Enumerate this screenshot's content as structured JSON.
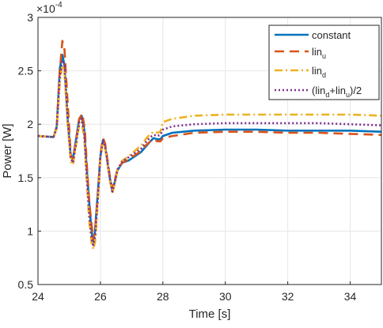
{
  "chart_data": {
    "type": "line",
    "xlabel": "Time [s]",
    "ylabel": "Power [W]",
    "exponent_label": {
      "base": "×10",
      "power": "-4"
    },
    "xlim": [
      24,
      35
    ],
    "ylim": [
      0.5,
      3
    ],
    "xticks": [
      24,
      26,
      28,
      30,
      32,
      34
    ],
    "xtick_labels": [
      "24",
      "26",
      "28",
      "30",
      "32",
      "34"
    ],
    "yticks": [
      0.5,
      1,
      1.5,
      2,
      2.5,
      3
    ],
    "ytick_labels": [
      "0.5",
      "1",
      "1.5",
      "2",
      "2.5",
      "3"
    ],
    "grid": true,
    "legend_position": "top-right",
    "series": [
      {
        "name": "constant",
        "legend_parts": [
          {
            "t": "constant",
            "sub": false
          }
        ],
        "color": "#0072BD",
        "dash": "solid",
        "points": [
          [
            24,
            1.89
          ],
          [
            24.5,
            1.88
          ],
          [
            24.6,
            1.98
          ],
          [
            24.7,
            2.52
          ],
          [
            24.78,
            2.65
          ],
          [
            24.85,
            2.55
          ],
          [
            24.95,
            2.05
          ],
          [
            25.05,
            1.7
          ],
          [
            25.12,
            1.68
          ],
          [
            25.2,
            1.82
          ],
          [
            25.32,
            2.05
          ],
          [
            25.4,
            2.08
          ],
          [
            25.48,
            1.95
          ],
          [
            25.56,
            1.6
          ],
          [
            25.62,
            1.35
          ],
          [
            25.7,
            1.05
          ],
          [
            25.76,
            0.9
          ],
          [
            25.82,
            0.98
          ],
          [
            25.9,
            1.3
          ],
          [
            26.0,
            1.7
          ],
          [
            26.08,
            1.85
          ],
          [
            26.15,
            1.8
          ],
          [
            26.3,
            1.5
          ],
          [
            26.38,
            1.38
          ],
          [
            26.45,
            1.45
          ],
          [
            26.55,
            1.57
          ],
          [
            26.7,
            1.64
          ],
          [
            26.9,
            1.66
          ],
          [
            27.1,
            1.7
          ],
          [
            27.3,
            1.74
          ],
          [
            27.45,
            1.79
          ],
          [
            27.6,
            1.84
          ],
          [
            27.7,
            1.87
          ],
          [
            27.82,
            1.86
          ],
          [
            27.92,
            1.86
          ],
          [
            28.0,
            1.89
          ],
          [
            28.3,
            1.92
          ],
          [
            29,
            1.94
          ],
          [
            30,
            1.95
          ],
          [
            31,
            1.95
          ],
          [
            32,
            1.94
          ],
          [
            33,
            1.94
          ],
          [
            34,
            1.94
          ],
          [
            35,
            1.93
          ]
        ]
      },
      {
        "name": "lin_u",
        "legend_parts": [
          {
            "t": "lin",
            "sub": false
          },
          {
            "t": "u",
            "sub": true
          }
        ],
        "color": "#D95319",
        "dash": "12,7",
        "points": [
          [
            24,
            1.89
          ],
          [
            24.5,
            1.88
          ],
          [
            24.6,
            1.97
          ],
          [
            24.7,
            2.5
          ],
          [
            24.78,
            2.78
          ],
          [
            24.85,
            2.7
          ],
          [
            24.95,
            2.2
          ],
          [
            25.05,
            1.72
          ],
          [
            25.12,
            1.66
          ],
          [
            25.22,
            1.85
          ],
          [
            25.32,
            2.05
          ],
          [
            25.42,
            2.1
          ],
          [
            25.5,
            1.95
          ],
          [
            25.58,
            1.55
          ],
          [
            25.65,
            1.25
          ],
          [
            25.72,
            1.05
          ],
          [
            25.77,
            0.92
          ],
          [
            25.83,
            1.0
          ],
          [
            25.92,
            1.35
          ],
          [
            26.0,
            1.72
          ],
          [
            26.08,
            1.87
          ],
          [
            26.15,
            1.82
          ],
          [
            26.3,
            1.52
          ],
          [
            26.38,
            1.4
          ],
          [
            26.45,
            1.47
          ],
          [
            26.55,
            1.58
          ],
          [
            26.7,
            1.64
          ],
          [
            26.9,
            1.67
          ],
          [
            27.1,
            1.71
          ],
          [
            27.3,
            1.75
          ],
          [
            27.45,
            1.8
          ],
          [
            27.6,
            1.84
          ],
          [
            27.72,
            1.86
          ],
          [
            27.82,
            1.84
          ],
          [
            27.92,
            1.84
          ],
          [
            28.0,
            1.87
          ],
          [
            28.3,
            1.89
          ],
          [
            29,
            1.92
          ],
          [
            30,
            1.93
          ],
          [
            31,
            1.93
          ],
          [
            32,
            1.92
          ],
          [
            33,
            1.92
          ],
          [
            34,
            1.91
          ],
          [
            35,
            1.9
          ]
        ]
      },
      {
        "name": "lin_d",
        "legend_parts": [
          {
            "t": "lin",
            "sub": false
          },
          {
            "t": "d",
            "sub": true
          }
        ],
        "color": "#EDB120",
        "dash": "10,4,2,4",
        "points": [
          [
            24,
            1.89
          ],
          [
            24.5,
            1.88
          ],
          [
            24.6,
            1.96
          ],
          [
            24.7,
            2.4
          ],
          [
            24.78,
            2.55
          ],
          [
            24.85,
            2.48
          ],
          [
            24.95,
            2.0
          ],
          [
            25.05,
            1.65
          ],
          [
            25.12,
            1.62
          ],
          [
            25.22,
            1.8
          ],
          [
            25.32,
            2.0
          ],
          [
            25.4,
            2.02
          ],
          [
            25.48,
            1.88
          ],
          [
            25.56,
            1.5
          ],
          [
            25.64,
            1.1
          ],
          [
            25.72,
            0.88
          ],
          [
            25.78,
            0.83
          ],
          [
            25.84,
            0.92
          ],
          [
            25.92,
            1.3
          ],
          [
            26.0,
            1.68
          ],
          [
            26.08,
            1.83
          ],
          [
            26.15,
            1.78
          ],
          [
            26.3,
            1.48
          ],
          [
            26.38,
            1.35
          ],
          [
            26.45,
            1.43
          ],
          [
            26.55,
            1.57
          ],
          [
            26.7,
            1.66
          ],
          [
            26.9,
            1.7
          ],
          [
            27.1,
            1.75
          ],
          [
            27.3,
            1.8
          ],
          [
            27.45,
            1.86
          ],
          [
            27.6,
            1.91
          ],
          [
            27.72,
            1.93
          ],
          [
            27.82,
            1.92
          ],
          [
            27.92,
            1.93
          ],
          [
            28.0,
            2.02
          ],
          [
            28.3,
            2.05
          ],
          [
            29,
            2.08
          ],
          [
            30,
            2.09
          ],
          [
            31,
            2.09
          ],
          [
            32,
            2.09
          ],
          [
            33,
            2.09
          ],
          [
            34,
            2.09
          ],
          [
            35,
            2.08
          ]
        ]
      },
      {
        "name": "(lin_d+lin_u)/2",
        "legend_parts": [
          {
            "t": "(lin",
            "sub": false
          },
          {
            "t": "d",
            "sub": true
          },
          {
            "t": "+lin",
            "sub": false
          },
          {
            "t": "u",
            "sub": true
          },
          {
            "t": ")/2",
            "sub": false
          }
        ],
        "color": "#7E2F8E",
        "dash": "2,3",
        "points": [
          [
            24,
            1.89
          ],
          [
            24.5,
            1.88
          ],
          [
            24.6,
            1.97
          ],
          [
            24.7,
            2.45
          ],
          [
            24.78,
            2.6
          ],
          [
            24.85,
            2.55
          ],
          [
            24.95,
            2.05
          ],
          [
            25.05,
            1.68
          ],
          [
            25.12,
            1.64
          ],
          [
            25.22,
            1.82
          ],
          [
            25.32,
            2.02
          ],
          [
            25.4,
            2.05
          ],
          [
            25.48,
            1.92
          ],
          [
            25.56,
            1.52
          ],
          [
            25.64,
            1.15
          ],
          [
            25.72,
            0.92
          ],
          [
            25.77,
            0.87
          ],
          [
            25.83,
            0.95
          ],
          [
            25.92,
            1.32
          ],
          [
            26.0,
            1.7
          ],
          [
            26.08,
            1.85
          ],
          [
            26.15,
            1.8
          ],
          [
            26.3,
            1.5
          ],
          [
            26.38,
            1.37
          ],
          [
            26.45,
            1.45
          ],
          [
            26.55,
            1.58
          ],
          [
            26.7,
            1.65
          ],
          [
            26.9,
            1.69
          ],
          [
            27.1,
            1.73
          ],
          [
            27.3,
            1.77
          ],
          [
            27.45,
            1.83
          ],
          [
            27.6,
            1.88
          ],
          [
            27.72,
            1.9
          ],
          [
            27.82,
            1.89
          ],
          [
            27.92,
            1.9
          ],
          [
            28.0,
            1.95
          ],
          [
            28.3,
            1.98
          ],
          [
            29,
            2.0
          ],
          [
            30,
            2.01
          ],
          [
            31,
            2.01
          ],
          [
            32,
            2.01
          ],
          [
            33,
            2.01
          ],
          [
            34,
            2.0
          ],
          [
            35,
            1.99
          ]
        ]
      }
    ]
  }
}
